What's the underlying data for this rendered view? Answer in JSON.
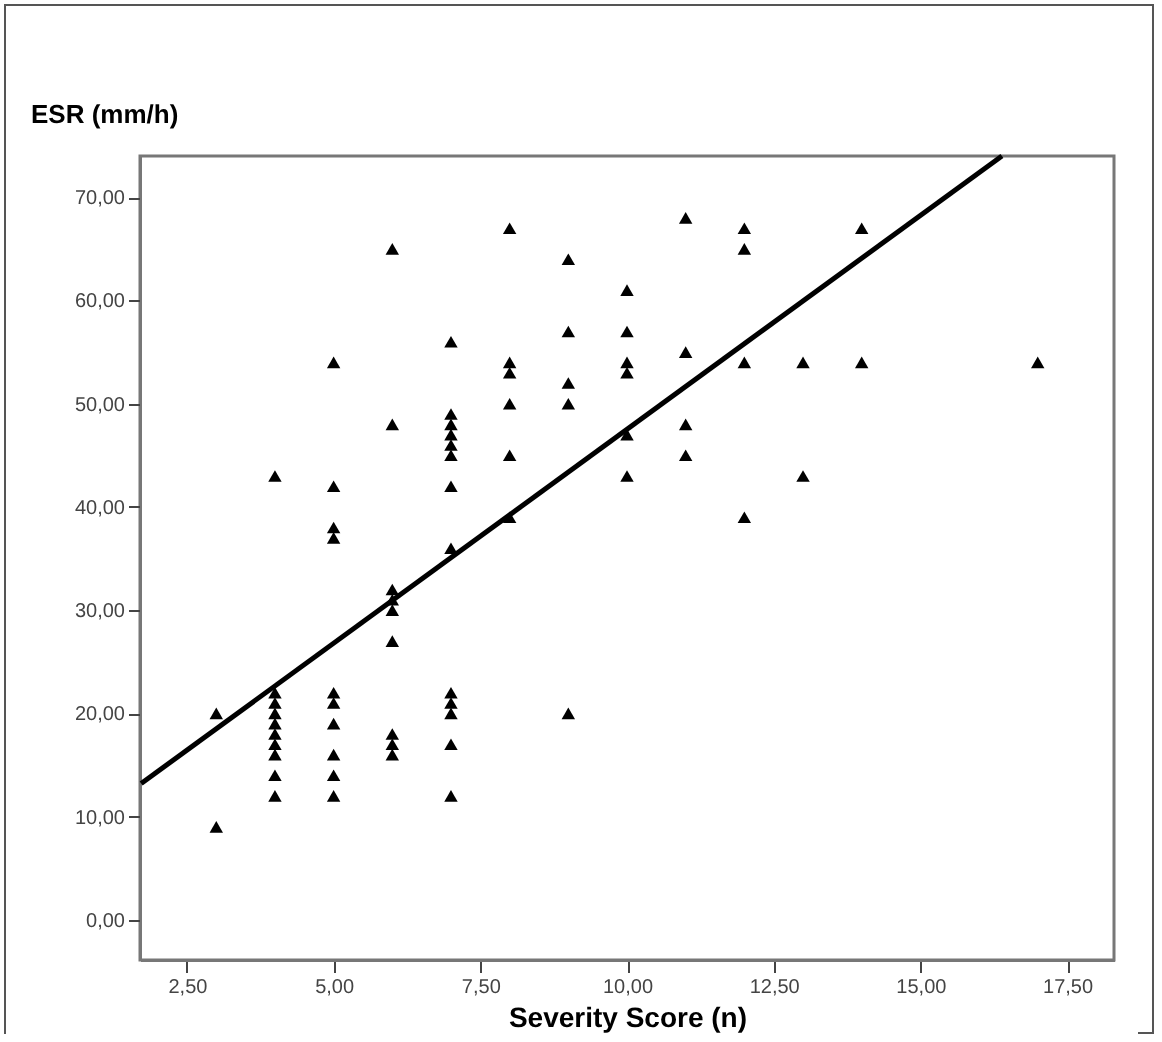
{
  "chart_data": {
    "type": "scatter",
    "xlabel": "Severity Score (n)",
    "ylabel": "ESR (mm/h)",
    "grid": false,
    "xlim": [
      1.7,
      18.3
    ],
    "ylim": [
      -3.9,
      74
    ],
    "xticks": [
      {
        "value": 2.5,
        "label": "2,50"
      },
      {
        "value": 5,
        "label": "5,00"
      },
      {
        "value": 7.5,
        "label": "7,50"
      },
      {
        "value": 10,
        "label": "10,00"
      },
      {
        "value": 12.5,
        "label": "12,50"
      },
      {
        "value": 15,
        "label": "15,00"
      },
      {
        "value": 17.5,
        "label": "17,50"
      }
    ],
    "yticks": [
      {
        "value": 0,
        "label": "0,00"
      },
      {
        "value": 10,
        "label": "10,00"
      },
      {
        "value": 20,
        "label": "20,00"
      },
      {
        "value": 30,
        "label": "30,00"
      },
      {
        "value": 40,
        "label": "40,00"
      },
      {
        "value": 50,
        "label": "50,00"
      },
      {
        "value": 60,
        "label": "60,00"
      },
      {
        "value": 70,
        "label": "70,00"
      }
    ],
    "series": [
      {
        "color": "#000000",
        "marker": "triangle",
        "x": [
          3,
          3,
          4,
          4,
          4,
          4,
          4,
          4,
          4,
          4,
          4,
          4,
          5,
          5,
          5,
          5,
          5,
          5,
          5,
          5,
          5,
          5,
          6,
          6,
          6,
          6,
          6,
          6,
          6,
          6,
          6,
          7,
          7,
          7,
          7,
          7,
          7,
          7,
          7,
          7,
          7,
          7,
          7,
          7,
          8,
          8,
          8,
          8,
          8,
          8,
          9,
          9,
          9,
          9,
          9,
          10,
          10,
          10,
          10,
          10,
          10,
          11,
          11,
          11,
          11,
          12,
          12,
          12,
          12,
          13,
          13,
          14,
          14,
          17
        ],
        "values": [
          20,
          9,
          43,
          22,
          21,
          20,
          19,
          18,
          17,
          16,
          14,
          12,
          54,
          42,
          38,
          37,
          22,
          21,
          19,
          16,
          14,
          12,
          65,
          48,
          32,
          31,
          30,
          27,
          18,
          17,
          16,
          56,
          49,
          48,
          47,
          46,
          45,
          42,
          36,
          22,
          21,
          20,
          17,
          12,
          67,
          54,
          53,
          50,
          45,
          39,
          64,
          57,
          52,
          50,
          20,
          61,
          57,
          54,
          53,
          47,
          43,
          68,
          55,
          48,
          45,
          67,
          65,
          54,
          39,
          54,
          43,
          67,
          54,
          54
        ]
      },
      {
        "type": "line",
        "marker": "none",
        "color": "#000000",
        "x": [
          1.72,
          16.39
        ],
        "values": [
          13.2,
          74
        ]
      }
    ]
  }
}
